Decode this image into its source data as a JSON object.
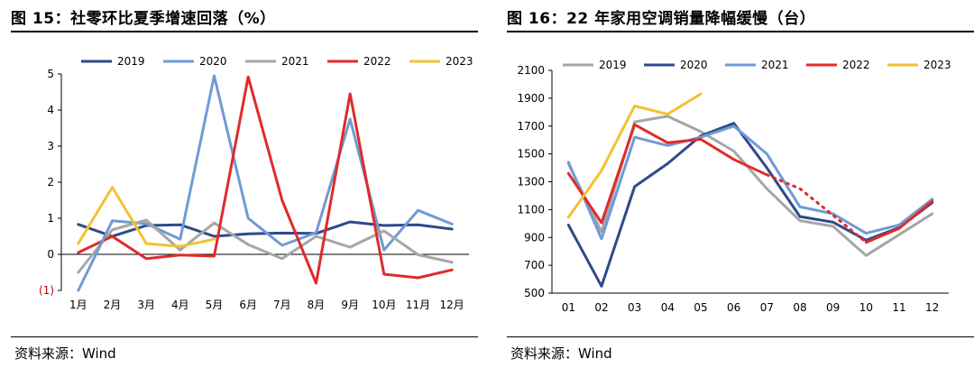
{
  "left": {
    "title": "图 15：社零环比夏季增速回落（%）",
    "source": "资料来源：Wind"
  },
  "right": {
    "title": "图 16：22 年家用空调销量降幅缓慢（台）",
    "source": "资料来源：Wind"
  },
  "chart_data": [
    {
      "type": "line",
      "title": "图 15：社零环比夏季增速回落（%）",
      "categories": [
        "1月",
        "2月",
        "3月",
        "4月",
        "5月",
        "6月",
        "7月",
        "8月",
        "9月",
        "10月",
        "11月",
        "12月"
      ],
      "ylim": [
        -1,
        5
      ],
      "yticks": [
        {
          "value": 5,
          "label": "5"
        },
        {
          "value": 4,
          "label": "4"
        },
        {
          "value": 3,
          "label": "3"
        },
        {
          "value": 2,
          "label": "2"
        },
        {
          "value": 1,
          "label": "1"
        },
        {
          "value": 0,
          "label": "0"
        },
        {
          "value": -1,
          "label": "(1)"
        }
      ],
      "legend_position": "top",
      "grid": false,
      "series": [
        {
          "name": "2019",
          "color": "#2e4a8a",
          "values": [
            0.83,
            0.5,
            0.8,
            0.82,
            0.5,
            0.57,
            0.59,
            0.58,
            0.9,
            0.8,
            0.82,
            0.7
          ]
        },
        {
          "name": "2020",
          "color": "#6f9bd4",
          "values": [
            null,
            0.93,
            0.85,
            0.42,
            4.95,
            1.0,
            0.25,
            0.6,
            3.75,
            0.12,
            1.22,
            0.84
          ]
        },
        {
          "name": "2021",
          "color": "#a6a6a6",
          "values": [
            -0.5,
            0.68,
            0.95,
            0.12,
            0.87,
            0.27,
            -0.12,
            0.5,
            0.2,
            0.65,
            -0.01,
            -0.22
          ]
        },
        {
          "name": "2022",
          "color": "#e02b2b",
          "values": [
            0.05,
            0.5,
            -0.12,
            -0.02,
            -0.05,
            4.92,
            1.5,
            -0.8,
            4.45,
            -0.55,
            -0.65,
            -0.43
          ]
        },
        {
          "name": "2023",
          "color": "#f2c230",
          "values": [
            0.3,
            1.86,
            0.3,
            0.22,
            0.42,
            null,
            null,
            null,
            null,
            null,
            null,
            null
          ]
        }
      ],
      "extra_segments": [
        {
          "series": "2020",
          "from": [
            0,
            -1.0
          ],
          "to": [
            1,
            0.93
          ]
        }
      ]
    },
    {
      "type": "line",
      "title": "图 16：22 年家用空调销量降幅缓慢（台）",
      "categories": [
        "01",
        "02",
        "03",
        "04",
        "05",
        "06",
        "07",
        "08",
        "09",
        "10",
        "11",
        "12"
      ],
      "ylim": [
        500,
        2100
      ],
      "yticks": [
        {
          "value": 2100,
          "label": "2100"
        },
        {
          "value": 1900,
          "label": "1900"
        },
        {
          "value": 1700,
          "label": "1700"
        },
        {
          "value": 1500,
          "label": "1500"
        },
        {
          "value": 1300,
          "label": "1300"
        },
        {
          "value": 1100,
          "label": "1100"
        },
        {
          "value": 900,
          "label": "900"
        },
        {
          "value": 700,
          "label": "700"
        },
        {
          "value": 500,
          "label": "500"
        }
      ],
      "legend_position": "top",
      "grid": false,
      "series": [
        {
          "name": "2019",
          "color": "#a6a6a6",
          "values": [
            1430,
            940,
            1730,
            1770,
            1660,
            1520,
            1250,
            1020,
            980,
            770,
            920,
            1070
          ]
        },
        {
          "name": "2020",
          "color": "#2e4a8a",
          "values": [
            990,
            550,
            1265,
            1430,
            1630,
            1720,
            1400,
            1050,
            1010,
            880,
            970,
            1150
          ]
        },
        {
          "name": "2021",
          "color": "#6f9bd4",
          "values": [
            1440,
            890,
            1620,
            1560,
            1620,
            1700,
            1500,
            1120,
            1070,
            930,
            990,
            1175
          ]
        },
        {
          "name": "2022",
          "color": "#e02b2b",
          "values": [
            1360,
            1005,
            1710,
            1580,
            1605,
            1460,
            1350,
            null,
            null,
            865,
            965,
            1160
          ]
        },
        {
          "name": "2023",
          "color": "#f2c230",
          "values": [
            1045,
            1380,
            1845,
            1785,
            1930,
            null,
            null,
            null,
            null,
            null,
            null,
            null
          ]
        }
      ],
      "dotted_segments": [
        {
          "series": "2022",
          "points": [
            [
              6,
              1350
            ],
            [
              7,
              1250
            ],
            [
              8,
              1060
            ],
            [
              9,
              865
            ]
          ]
        }
      ]
    }
  ]
}
